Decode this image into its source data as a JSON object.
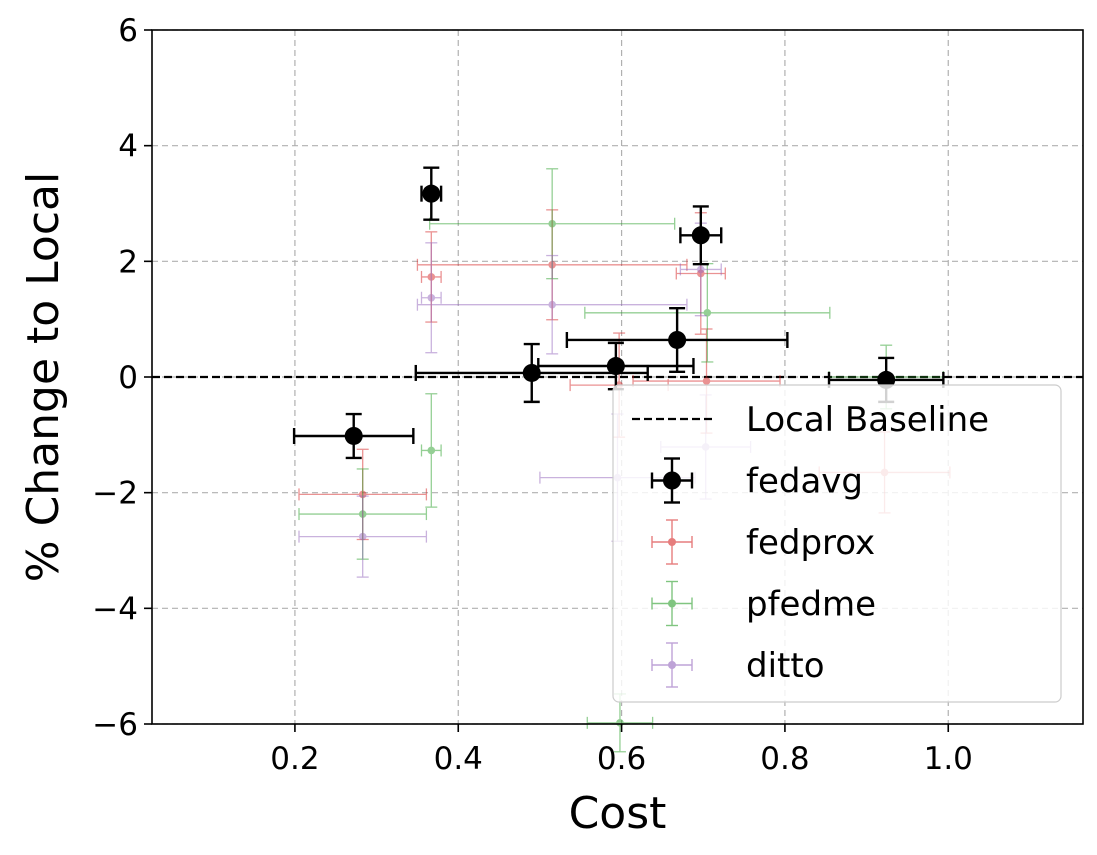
{
  "chart_data": {
    "type": "scatter",
    "title": "",
    "xlabel": "Cost",
    "ylabel": "% Change to Local",
    "xlim": [
      0.025,
      1.165
    ],
    "ylim": [
      -6,
      6
    ],
    "xticks": [
      0.2,
      0.4,
      0.6,
      0.8,
      1.0
    ],
    "xtick_labels": [
      "0.2",
      "0.4",
      "0.6",
      "0.8",
      "1.0"
    ],
    "yticks": [
      -6,
      -4,
      -2,
      0,
      2,
      4,
      6
    ],
    "ytick_labels": [
      "−6",
      "−4",
      "−2",
      "0",
      "2",
      "4",
      "6"
    ],
    "grid": true,
    "legend_position": "lower-right",
    "baseline": {
      "name": "Local Baseline",
      "y": 0,
      "color": "#000000",
      "style": "dashed"
    },
    "series": [
      {
        "name": "fedprox",
        "color": "#d62728",
        "points": [
          {
            "x": 0.367,
            "y": 1.73,
            "xerr": 0.012,
            "yerr": 0.78
          },
          {
            "x": 0.283,
            "y": -2.03,
            "xerr": 0.078,
            "yerr": 0.78
          },
          {
            "x": 0.515,
            "y": 1.94,
            "xerr": 0.165,
            "yerr": 0.95
          },
          {
            "x": 0.597,
            "y": -0.14,
            "xerr": 0.06,
            "yerr": 0.9
          },
          {
            "x": 0.697,
            "y": 1.79,
            "xerr": 0.03,
            "yerr": 1.05
          },
          {
            "x": 0.704,
            "y": -0.07,
            "xerr": 0.09,
            "yerr": 0.9
          },
          {
            "x": 0.922,
            "y": -1.65,
            "xerr": 0.08,
            "yerr": 0.7
          }
        ]
      },
      {
        "name": "pfedme",
        "color": "#2ca02c",
        "points": [
          {
            "x": 0.367,
            "y": -1.27,
            "xerr": 0.012,
            "yerr": 0.98
          },
          {
            "x": 0.283,
            "y": -2.37,
            "xerr": 0.078,
            "yerr": 0.78
          },
          {
            "x": 0.515,
            "y": 2.65,
            "xerr": 0.15,
            "yerr": 0.95
          },
          {
            "x": 0.705,
            "y": 1.11,
            "xerr": 0.15,
            "yerr": 0.85
          },
          {
            "x": 0.598,
            "y": -5.98,
            "xerr": 0.04,
            "yerr": 0.5
          },
          {
            "x": 0.924,
            "y": 0.0,
            "xerr": 0.07,
            "yerr": 0.55
          }
        ]
      },
      {
        "name": "ditto",
        "color": "#9467bd",
        "points": [
          {
            "x": 0.367,
            "y": 1.37,
            "xerr": 0.012,
            "yerr": 0.95
          },
          {
            "x": 0.283,
            "y": -2.76,
            "xerr": 0.078,
            "yerr": 0.7
          },
          {
            "x": 0.515,
            "y": 1.25,
            "xerr": 0.165,
            "yerr": 0.85
          },
          {
            "x": 0.697,
            "y": 1.86,
            "xerr": 0.025,
            "yerr": 0.8
          },
          {
            "x": 0.595,
            "y": -1.74,
            "xerr": 0.095,
            "yerr": 1.1
          },
          {
            "x": 0.703,
            "y": -1.21,
            "xerr": 0.055,
            "yerr": 0.9
          }
        ]
      },
      {
        "name": "fedavg",
        "color": "#000000",
        "points": [
          {
            "x": 0.367,
            "y": 3.17,
            "xerr": 0.012,
            "yerr": 0.45
          },
          {
            "x": 0.272,
            "y": -1.02,
            "xerr": 0.073,
            "yerr": 0.38
          },
          {
            "x": 0.697,
            "y": 2.45,
            "xerr": 0.025,
            "yerr": 0.5
          },
          {
            "x": 0.49,
            "y": 0.07,
            "xerr": 0.142,
            "yerr": 0.5
          },
          {
            "x": 0.593,
            "y": 0.19,
            "xerr": 0.095,
            "yerr": 0.4
          },
          {
            "x": 0.668,
            "y": 0.64,
            "xerr": 0.135,
            "yerr": 0.55
          },
          {
            "x": 0.924,
            "y": -0.05,
            "xerr": 0.07,
            "yerr": 0.38
          }
        ]
      }
    ],
    "legend": [
      "Local Baseline",
      "fedavg",
      "fedprox",
      "pfedme",
      "ditto"
    ]
  }
}
